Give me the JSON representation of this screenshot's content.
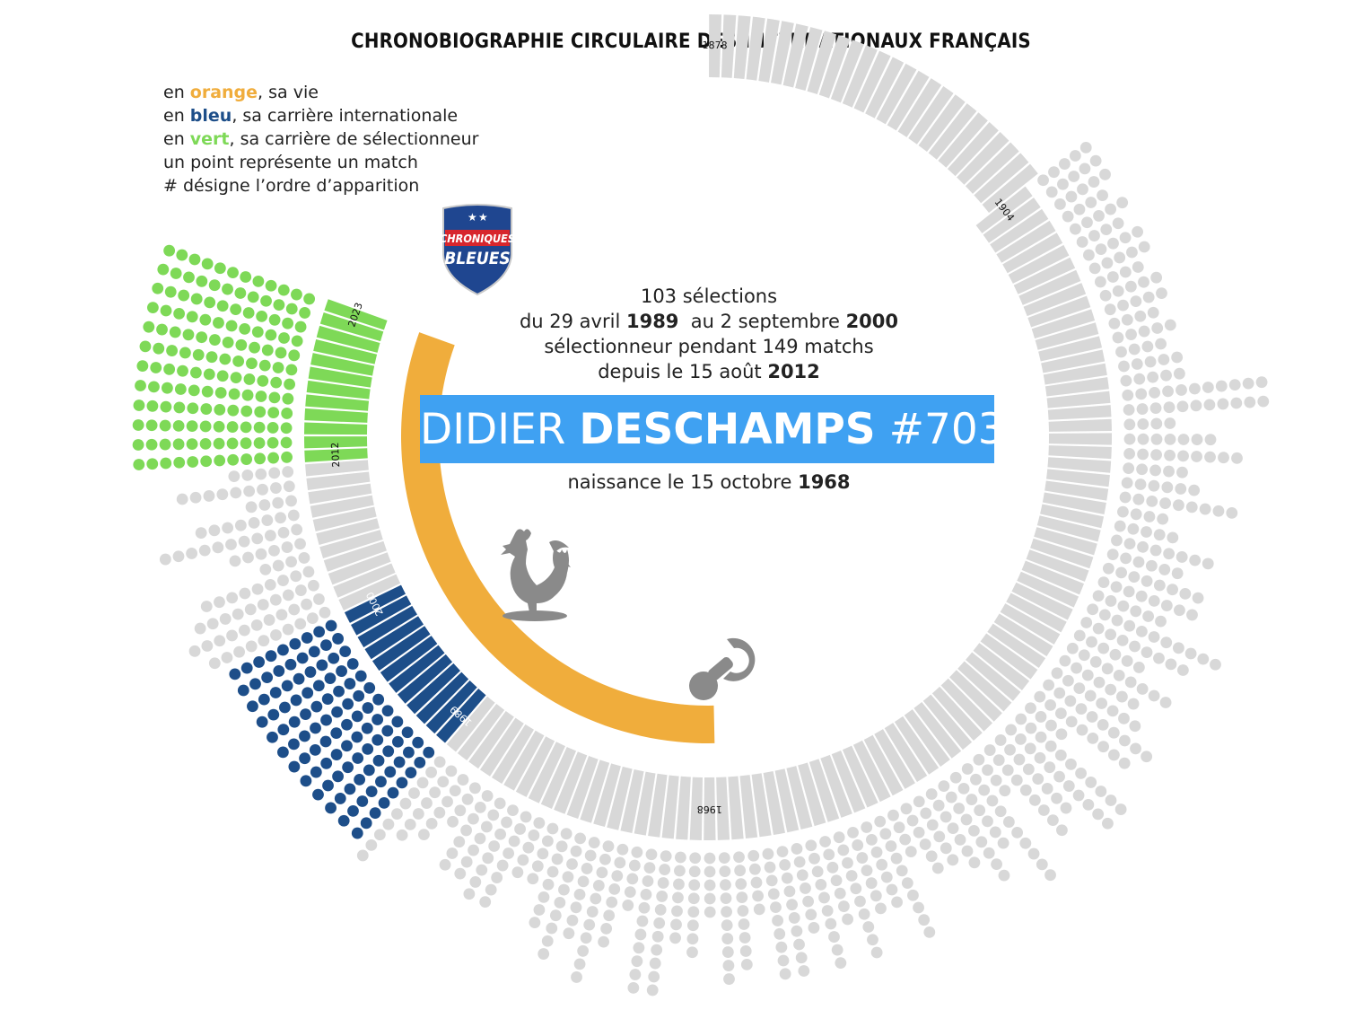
{
  "title": "CHRONOBIOGRAPHIE CIRCULAIRE DES INTERNATIONAUX FRANÇAIS",
  "legend": [
    {
      "prefix": "en ",
      "keyword": "orange",
      "keyword_color": "#f0ad3c",
      "suffix": ", sa vie"
    },
    {
      "prefix": "en ",
      "keyword": "bleu",
      "keyword_color": "#1d4e89",
      "suffix": ", sa carrière internationale"
    },
    {
      "prefix": "en ",
      "keyword": "vert",
      "keyword_color": "#7ed957",
      "suffix": ", sa carrière de sélectionneur"
    },
    {
      "prefix": "",
      "keyword": "",
      "keyword_color": "",
      "suffix": "un point représente un match"
    },
    {
      "prefix": "",
      "keyword": "",
      "keyword_color": "",
      "suffix": "# désigne l’ordre d’apparition"
    }
  ],
  "badge": {
    "line1": "CHRONIQUES",
    "line2": "BLEUES"
  },
  "info": {
    "selections": "103 sélections",
    "period_prefix": "du 29 avril ",
    "period_start_year": "1989",
    "period_middle": "  au 2 septembre ",
    "period_end_year": "2000",
    "coach_line": "sélectionneur pendant 149 matchs",
    "coach_prefix": "depuis le 15 août ",
    "coach_year": "2012"
  },
  "player": {
    "first_name": "DIDIER ",
    "last_name": "DESCHAMPS",
    "number": " #703"
  },
  "birth": {
    "prefix": "naissance le 15 octobre ",
    "year": "1968"
  },
  "colors": {
    "life": "#f0ad3c",
    "player": "#1d4e89",
    "coach": "#7ed957",
    "neutral": "#d8d8d8",
    "banner": "#3fa1f2",
    "icon": "#8a8a8a"
  },
  "icons": [
    "shield-badge-icon",
    "rooster-icon",
    "pacifier-icon"
  ],
  "chart_data": {
    "type": "radial-timeline",
    "start_year": 1878,
    "years_labels": [
      "1878",
      "1904",
      "1968",
      "1989",
      "2000",
      "2012",
      "2023"
    ],
    "life": {
      "from": "1968",
      "to": "2023"
    },
    "international_career": {
      "from": "1989",
      "to": "2000",
      "matches": 103
    },
    "coaching_career": {
      "from": "2012",
      "to": "2023",
      "matches": 149
    }
  }
}
